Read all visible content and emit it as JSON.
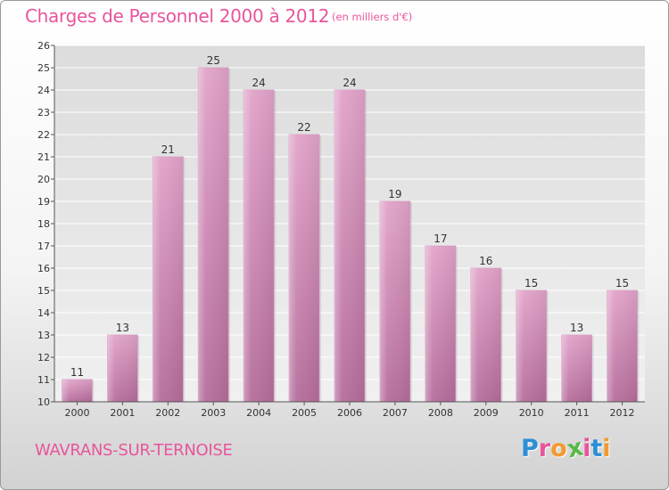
{
  "title": "Charges de Personnel 2000 à 2012",
  "unit_note": "(en milliers d'€)",
  "town": "WAVRANS-SUR-TERNOISE",
  "logo": {
    "letters": [
      "P",
      "r",
      "o",
      "x",
      "i",
      "t",
      "i"
    ],
    "colors": [
      "#2d8fd6",
      "#e8559c",
      "#f29a2e",
      "#58b947",
      "#e8559c",
      "#2d8fd6",
      "#f29a2e"
    ]
  },
  "colors": {
    "accent": "#e8559c",
    "bar_top": "#e2a3ca",
    "bar_bottom": "#b56d9b",
    "grid": "#ffffff"
  },
  "chart_data": {
    "type": "bar",
    "categories": [
      "2000",
      "2001",
      "2002",
      "2003",
      "2004",
      "2005",
      "2006",
      "2007",
      "2008",
      "2009",
      "2010",
      "2011",
      "2012"
    ],
    "values": [
      11,
      13,
      21,
      25,
      24,
      22,
      24,
      19,
      17,
      16,
      15,
      13,
      15
    ],
    "ylim": [
      10,
      26
    ],
    "yticks": [
      10,
      11,
      12,
      13,
      14,
      15,
      16,
      17,
      18,
      19,
      20,
      21,
      22,
      23,
      24,
      25,
      26
    ],
    "grid": true,
    "xlabel": "",
    "ylabel": "",
    "legend": "none"
  }
}
